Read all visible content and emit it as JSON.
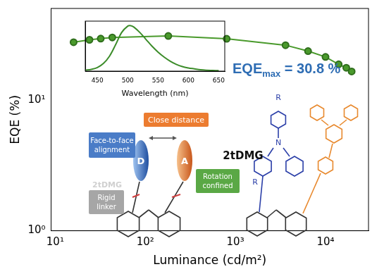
{
  "chart_data": {
    "type": "line",
    "x_label": "Luminance (cd/m²)",
    "y_label": "EQE (%)",
    "log": true,
    "grid": false,
    "xlim": [
      9,
      30000
    ],
    "xticks": [
      {
        "value": 10,
        "label": "10¹"
      },
      {
        "value": 100,
        "label": "10²"
      },
      {
        "value": 1000,
        "label": "10³"
      },
      {
        "value": 10000,
        "label": "10⁴"
      }
    ],
    "ylim": [
      1,
      50
    ],
    "yticks": [
      {
        "value": 1,
        "label": "10⁰"
      },
      {
        "value": 10,
        "label": "10¹"
      }
    ],
    "x": [
      16,
      24,
      32,
      43,
      180,
      800,
      3600,
      6400,
      10000,
      14000,
      17000,
      19500
    ],
    "values": [
      27.6,
      28.8,
      29.4,
      30.0,
      30.8,
      29.3,
      26.2,
      23.6,
      21.3,
      18.7,
      17.6,
      16.5
    ],
    "color": "#4a9a2c",
    "marker": "circle",
    "line_style": "solid",
    "annotation": {
      "text": "EQE",
      "subscript": "max",
      "tail": " = 30.8 %",
      "color": "#2e6db4"
    },
    "inset": {
      "type": "line",
      "x_label": "Wavelength (nm)",
      "x": [
        430,
        440,
        450,
        460,
        470,
        480,
        490,
        500,
        505,
        510,
        520,
        530,
        540,
        550,
        560,
        570,
        580,
        590,
        600,
        610,
        620,
        630,
        640,
        650
      ],
      "values": [
        0.02,
        0.04,
        0.08,
        0.17,
        0.33,
        0.58,
        0.85,
        0.99,
        1.0,
        0.97,
        0.85,
        0.7,
        0.55,
        0.42,
        0.31,
        0.22,
        0.15,
        0.1,
        0.07,
        0.05,
        0.03,
        0.02,
        0.015,
        0.01
      ],
      "xlim": [
        430,
        660
      ],
      "xticks": [
        450,
        500,
        550,
        600,
        650
      ],
      "ylim": [
        0,
        1.1
      ],
      "tick_labels": "x",
      "color": "#3c8c2a",
      "line_style": "solid"
    }
  },
  "diagram": {
    "boxes": [
      {
        "text": "Close distance",
        "color": "#ec7c30"
      },
      {
        "text": "Face-to-face alignment",
        "color": "#4a7cc7"
      },
      {
        "text": "Rotation confined",
        "color": "#5aa845"
      },
      {
        "text": "Rigid linker",
        "color": "#a6a6a6"
      }
    ],
    "donor": "D",
    "acceptor": "A",
    "substituent": "R",
    "compound": "2tDMG",
    "ghost_label": "2tDMG",
    "donor_color": "#2b3fa8",
    "acceptor_color": "#e8892e"
  }
}
